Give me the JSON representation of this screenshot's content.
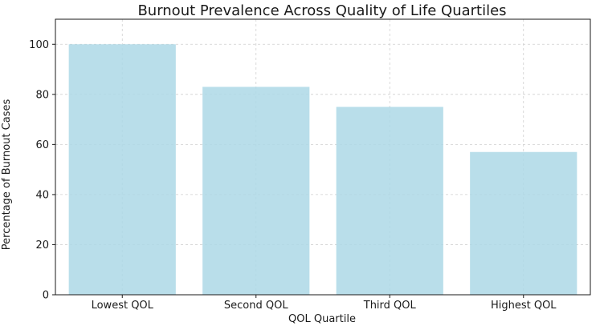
{
  "chart_data": {
    "type": "bar",
    "title": "Burnout Prevalence Across Quality of Life Quartiles",
    "xlabel": "QOL Quartile",
    "ylabel": "Percentage of Burnout Cases",
    "categories": [
      "Lowest QOL",
      "Second QOL",
      "Third QOL",
      "Highest QOL"
    ],
    "values": [
      100,
      83,
      75,
      57
    ],
    "ylim": [
      0,
      110
    ],
    "yticks": [
      0,
      20,
      40,
      60,
      80,
      100
    ],
    "grid": true,
    "bar_color": "#add8e6",
    "bar_alpha": 0.85
  }
}
